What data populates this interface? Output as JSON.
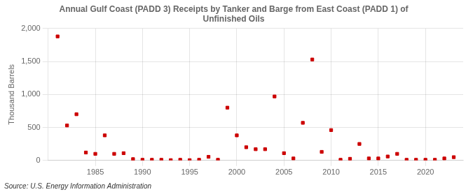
{
  "chart_data": {
    "type": "scatter",
    "title": "Annual Gulf Coast (PADD 3) Receipts by Tanker and Barge from East Coast (PADD 1) of\nUnfinished Oils",
    "ylabel": "Thousand Barrels",
    "annotations": [
      "Source: U.S. Energy Information Administration"
    ],
    "x": [
      1981,
      1982,
      1983,
      1984,
      1985,
      1986,
      1987,
      1988,
      1989,
      1990,
      1991,
      1992,
      1993,
      1994,
      1995,
      1996,
      1997,
      1998,
      1999,
      2000,
      2001,
      2002,
      2003,
      2004,
      2005,
      2006,
      2007,
      2008,
      2009,
      2010,
      2011,
      2012,
      2013,
      2014,
      2015,
      2016,
      2017,
      2018,
      2019,
      2020,
      2021,
      2022,
      2023
    ],
    "values": [
      1880,
      530,
      700,
      120,
      100,
      380,
      100,
      110,
      20,
      10,
      10,
      10,
      5,
      10,
      5,
      10,
      55,
      10,
      800,
      380,
      200,
      170,
      170,
      970,
      110,
      30,
      570,
      1530,
      130,
      460,
      10,
      25,
      250,
      30,
      30,
      60,
      100,
      10,
      10,
      10,
      10,
      30,
      50
    ],
    "color": "#cc0000",
    "marker": "square",
    "xlim": [
      1980,
      2024
    ],
    "xticks": [
      1985,
      1990,
      1995,
      2000,
      2005,
      2010,
      2015,
      2020
    ],
    "ylim": [
      0,
      2000
    ],
    "yticks": [
      0,
      500,
      {
        "value": 1000,
        "label": "1,000"
      },
      {
        "value": 1500,
        "label": "1,500"
      },
      {
        "value": 2000,
        "label": "2,000"
      }
    ],
    "grid": true
  }
}
